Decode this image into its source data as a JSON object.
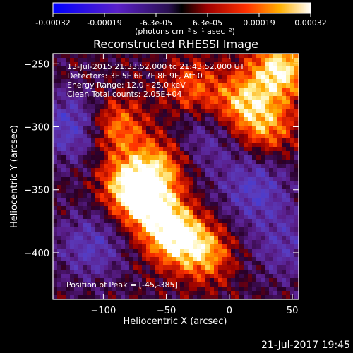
{
  "colorbar": {
    "tick_labels": [
      "-0.00032",
      "-0.00019",
      "-6.3e-05",
      "6.3e-05",
      "0.00019",
      "0.00032"
    ],
    "unit_label": "(photons cm⁻² s⁻¹ asec⁻²)",
    "range": [
      -0.00032,
      0.00032
    ]
  },
  "footer": {
    "timestamp": "21-Jul-2017 19:45"
  },
  "chart_data": {
    "type": "heatmap",
    "title": "Reconstructed RHESSI Image",
    "xlabel": "Heliocentric X (arcsec)",
    "ylabel": "Heliocentric Y (arcsec)",
    "xlim": [
      -140,
      55
    ],
    "ylim": [
      -437,
      -242
    ],
    "x_ticks": [
      -100,
      -50,
      0,
      50
    ],
    "y_ticks": [
      -250,
      -300,
      -350,
      -400
    ],
    "x_tick_labels": [
      "−100",
      "−50",
      "0",
      "50"
    ],
    "y_tick_labels": [
      "−250",
      "−300",
      "−350",
      "−400"
    ],
    "colormap": "rhessi red-temperature (blue-purple negative, red-yellow-white positive)",
    "annotations": [
      "13-Jul-2015 21:33:52.000 to 21:43:52.000 UT",
      "Detectors: 3F 5F 6F 7F 8F 9F, Att 0",
      "Energy Range: 12.0 - 25.0 keV",
      "Clean    Total counts: 2.05E+04"
    ],
    "peak_label": "Position of Peak = [-45,-385]",
    "peak_position": [
      -45,
      -385
    ],
    "bright_sources": [
      {
        "x": -45,
        "y": -385,
        "intensity": 1.0
      },
      {
        "x": -65,
        "y": -360,
        "intensity": 0.9
      },
      {
        "x": -80,
        "y": -345,
        "intensity": 0.75
      },
      {
        "x": -55,
        "y": -330,
        "intensity": 0.6
      },
      {
        "x": -20,
        "y": -400,
        "intensity": 0.7
      },
      {
        "x": -90,
        "y": -300,
        "intensity": 0.65
      },
      {
        "x": 10,
        "y": -280,
        "intensity": 0.7
      },
      {
        "x": 40,
        "y": -255,
        "intensity": 0.95
      },
      {
        "x": 30,
        "y": -300,
        "intensity": 0.6
      },
      {
        "x": -30,
        "y": -270,
        "intensity": 0.5
      }
    ],
    "dark_sources": [
      {
        "x": -125,
        "y": -300,
        "intensity": 0.6
      },
      {
        "x": 20,
        "y": -350,
        "intensity": 0.55
      },
      {
        "x": -110,
        "y": -395,
        "intensity": 0.5
      },
      {
        "x": -20,
        "y": -310,
        "intensity": 0.35
      },
      {
        "x": 45,
        "y": -395,
        "intensity": 0.4
      }
    ]
  }
}
